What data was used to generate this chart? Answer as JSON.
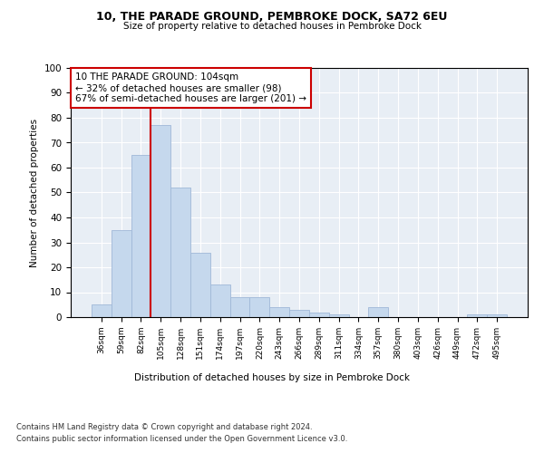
{
  "title1": "10, THE PARADE GROUND, PEMBROKE DOCK, SA72 6EU",
  "title2": "Size of property relative to detached houses in Pembroke Dock",
  "xlabel": "Distribution of detached houses by size in Pembroke Dock",
  "ylabel": "Number of detached properties",
  "categories": [
    "36sqm",
    "59sqm",
    "82sqm",
    "105sqm",
    "128sqm",
    "151sqm",
    "174sqm",
    "197sqm",
    "220sqm",
    "243sqm",
    "266sqm",
    "289sqm",
    "311sqm",
    "334sqm",
    "357sqm",
    "380sqm",
    "403sqm",
    "426sqm",
    "449sqm",
    "472sqm",
    "495sqm"
  ],
  "values": [
    5,
    35,
    65,
    77,
    52,
    26,
    13,
    8,
    8,
    4,
    3,
    2,
    1,
    0,
    4,
    0,
    0,
    0,
    0,
    1,
    1
  ],
  "bar_color": "#c5d8ed",
  "bar_edge_color": "#a0b8d8",
  "vline_x": 2.5,
  "vline_color": "#cc0000",
  "annotation_text": "10 THE PARADE GROUND: 104sqm\n← 32% of detached houses are smaller (98)\n67% of semi-detached houses are larger (201) →",
  "annotation_box_color": "#ffffff",
  "annotation_box_edge": "#cc0000",
  "ylim": [
    0,
    100
  ],
  "yticks": [
    0,
    10,
    20,
    30,
    40,
    50,
    60,
    70,
    80,
    90,
    100
  ],
  "footer1": "Contains HM Land Registry data © Crown copyright and database right 2024.",
  "footer2": "Contains public sector information licensed under the Open Government Licence v3.0.",
  "bg_color": "#e8eef5",
  "fig_bg": "#ffffff"
}
